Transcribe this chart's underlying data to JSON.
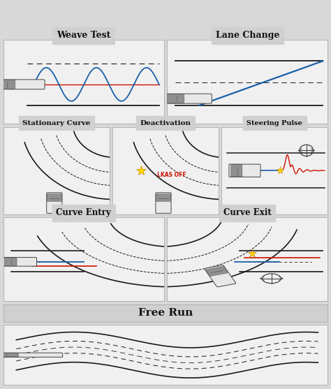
{
  "title_weave": "Weave Test",
  "title_lane": "Lane Change",
  "title_stat": "Stationary Curve",
  "title_deact": "Deactivation",
  "title_steer": "Steering Pulse",
  "title_entry": "Curve Entry",
  "title_exit": "Curve Exit",
  "title_free": "Free Run",
  "bg_outer": "#d8d8d8",
  "panel_bg": "#f0f0f0",
  "header_bg": "#d0d0d0",
  "dark": "#1a1a1a",
  "red": "#cc1100",
  "blue": "#1a5faa",
  "gold": "#FFD700",
  "car_body": "#e8e8e8",
  "car_edge": "#444444",
  "gray_dash": "#666666"
}
